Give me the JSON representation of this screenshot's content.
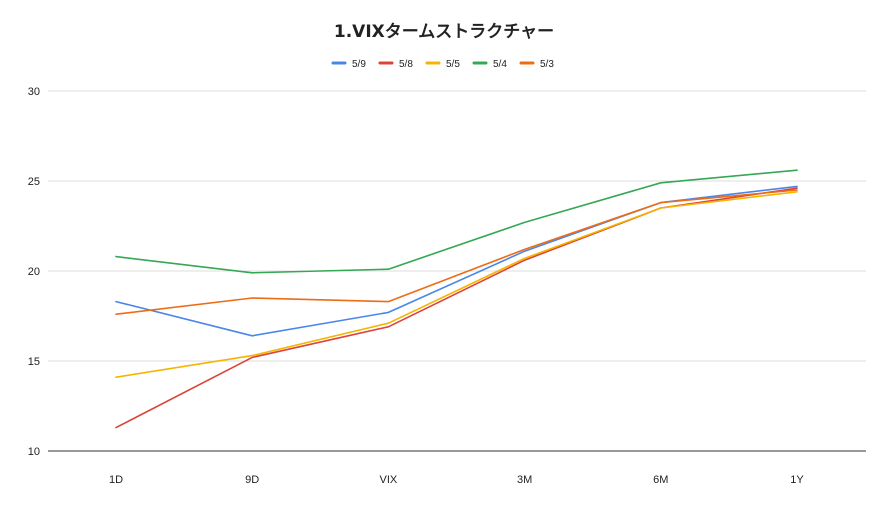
{
  "chart_data": {
    "type": "line",
    "title": "1.VIXタームストラクチャー",
    "xlabel": "",
    "ylabel": "",
    "categories": [
      "1D",
      "9D",
      "VIX",
      "3M",
      "6M",
      "1Y"
    ],
    "ylim": [
      10,
      30
    ],
    "yticks": [
      10,
      15,
      20,
      25,
      30
    ],
    "grid": true,
    "legend_position": "top",
    "series": [
      {
        "name": "5/9",
        "color": "#4a86e8",
        "values": [
          18.3,
          16.4,
          17.7,
          21.1,
          23.8,
          24.7
        ]
      },
      {
        "name": "5/8",
        "color": "#db4437",
        "values": [
          11.3,
          15.2,
          16.9,
          20.6,
          23.5,
          24.6
        ]
      },
      {
        "name": "5/5",
        "color": "#f4b400",
        "values": [
          14.1,
          15.3,
          17.1,
          20.7,
          23.5,
          24.4
        ]
      },
      {
        "name": "5/4",
        "color": "#34a853",
        "values": [
          20.8,
          19.9,
          20.1,
          22.7,
          24.9,
          25.6
        ]
      },
      {
        "name": "5/3",
        "color": "#ed6c16",
        "values": [
          17.6,
          18.5,
          18.3,
          21.2,
          23.8,
          24.5
        ]
      }
    ]
  }
}
